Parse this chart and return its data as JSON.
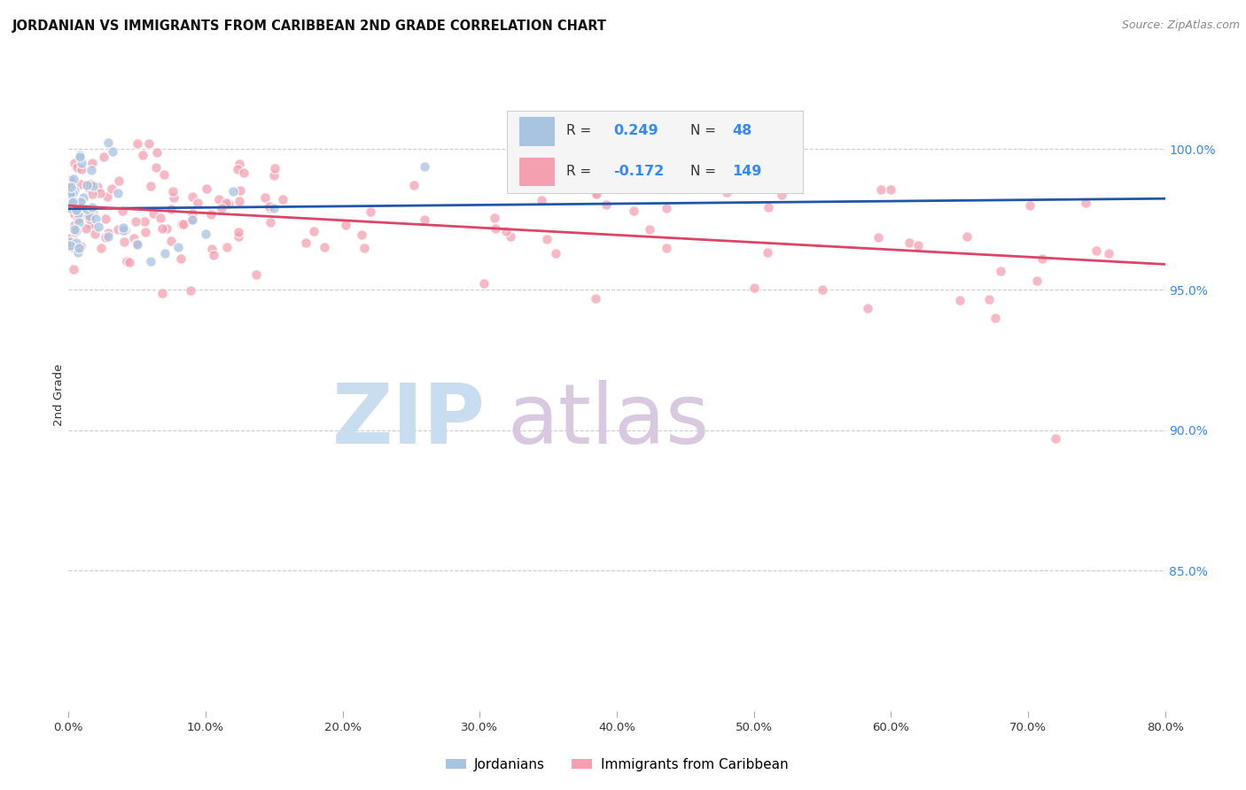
{
  "title": "JORDANIAN VS IMMIGRANTS FROM CARIBBEAN 2ND GRADE CORRELATION CHART",
  "source": "Source: ZipAtlas.com",
  "ylabel": "2nd Grade",
  "blue_R": 0.249,
  "blue_N": 48,
  "pink_R": -0.172,
  "pink_N": 149,
  "blue_color": "#a8c4e0",
  "pink_color": "#f4a0b0",
  "blue_line_color": "#2255aa",
  "pink_line_color": "#dd4466",
  "legend_label_blue": "Jordanians",
  "legend_label_pink": "Immigrants from Caribbean",
  "background_color": "#ffffff",
  "xlim": [
    0.0,
    0.8
  ],
  "ylim": [
    0.8,
    1.025
  ],
  "yticks": [
    1.0,
    0.95,
    0.9,
    0.85
  ],
  "ytick_labels": [
    "100.0%",
    "95.0%",
    "90.0%",
    "85.0%"
  ],
  "xtick_count": 9,
  "grid_color": "#cccccc",
  "legend_box_color": "#f5f5f5",
  "right_tick_color": "#3388ff",
  "watermark_zip_color": "#c8ddf0",
  "watermark_atlas_color": "#d8c8e0",
  "scatter_size": 70,
  "scatter_alpha": 0.75,
  "scatter_linewidth": 1.0,
  "scatter_edgecolor": "#ffffff"
}
